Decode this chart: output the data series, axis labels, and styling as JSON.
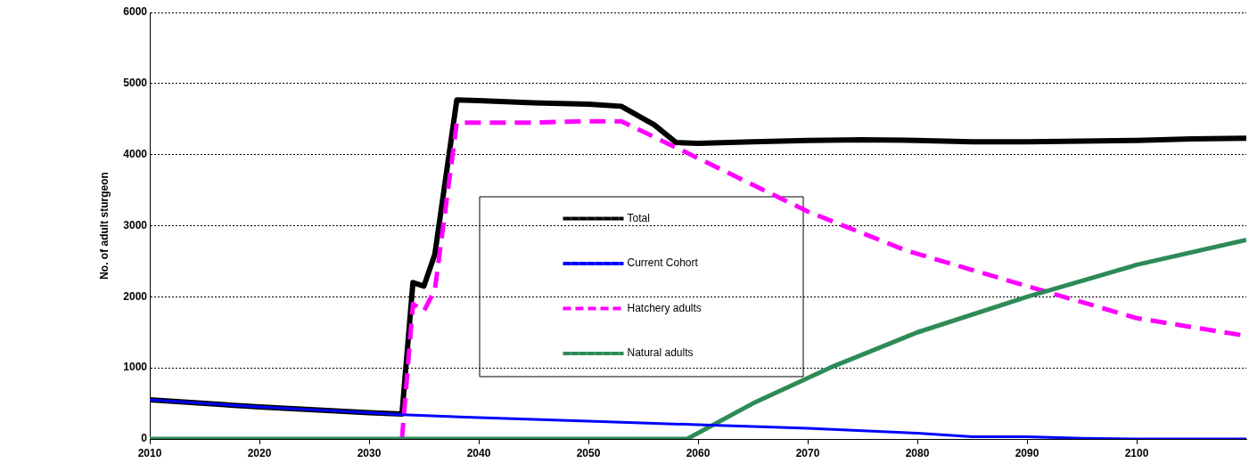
{
  "chart_data": {
    "type": "line",
    "ylabel": "No. of adult sturgeon",
    "xlim": [
      2010,
      2110
    ],
    "xticks": [
      2010,
      2020,
      2030,
      2040,
      2050,
      2060,
      2070,
      2080,
      2090,
      2100
    ],
    "ylim": [
      0,
      6000
    ],
    "yticks": [
      0,
      1000,
      2000,
      3000,
      4000,
      5000,
      6000
    ],
    "grid": "y",
    "legend": "center",
    "marker": "none",
    "series": [
      {
        "name": "Total",
        "color": "#000000",
        "line_style": "solid",
        "x": [
          2010,
          2020,
          2030,
          2033,
          2034,
          2035,
          2036,
          2038,
          2040,
          2045,
          2050,
          2053,
          2056,
          2058,
          2060,
          2065,
          2070,
          2075,
          2080,
          2085,
          2090,
          2100,
          2105,
          2110
        ],
        "values": [
          550,
          450,
          370,
          350,
          2200,
          2150,
          2600,
          4770,
          4760,
          4730,
          4710,
          4680,
          4420,
          4170,
          4160,
          4180,
          4200,
          4210,
          4200,
          4180,
          4180,
          4200,
          4220,
          4230
        ]
      },
      {
        "name": "Current Cohort",
        "color": "#0000ff",
        "line_style": "solid",
        "x": [
          2010,
          2020,
          2030,
          2033,
          2040,
          2050,
          2060,
          2070,
          2080,
          2085,
          2090,
          2095,
          2100,
          2110
        ],
        "values": [
          550,
          450,
          370,
          340,
          300,
          250,
          200,
          150,
          80,
          30,
          30,
          10,
          0,
          0
        ]
      },
      {
        "name": "Hatchery adults",
        "color": "#ff00ff",
        "line_style": "dashed",
        "x": [
          2033,
          2034,
          2035,
          2036,
          2038,
          2040,
          2045,
          2050,
          2053,
          2060,
          2070,
          2079,
          2090,
          2100,
          2110
        ],
        "values": [
          0,
          1900,
          1800,
          2100,
          4450,
          4450,
          4450,
          4470,
          4470,
          3950,
          3200,
          2650,
          2150,
          1700,
          1450
        ]
      },
      {
        "name": "Natural adults",
        "color": "#2e8b57",
        "line_style": "solid",
        "x": [
          2010,
          2020,
          2030,
          2040,
          2050,
          2059,
          2065,
          2072,
          2080,
          2090,
          2100,
          2110
        ],
        "values": [
          0,
          0,
          0,
          0,
          0,
          0,
          500,
          1000,
          1500,
          2000,
          2450,
          2800
        ]
      }
    ]
  }
}
